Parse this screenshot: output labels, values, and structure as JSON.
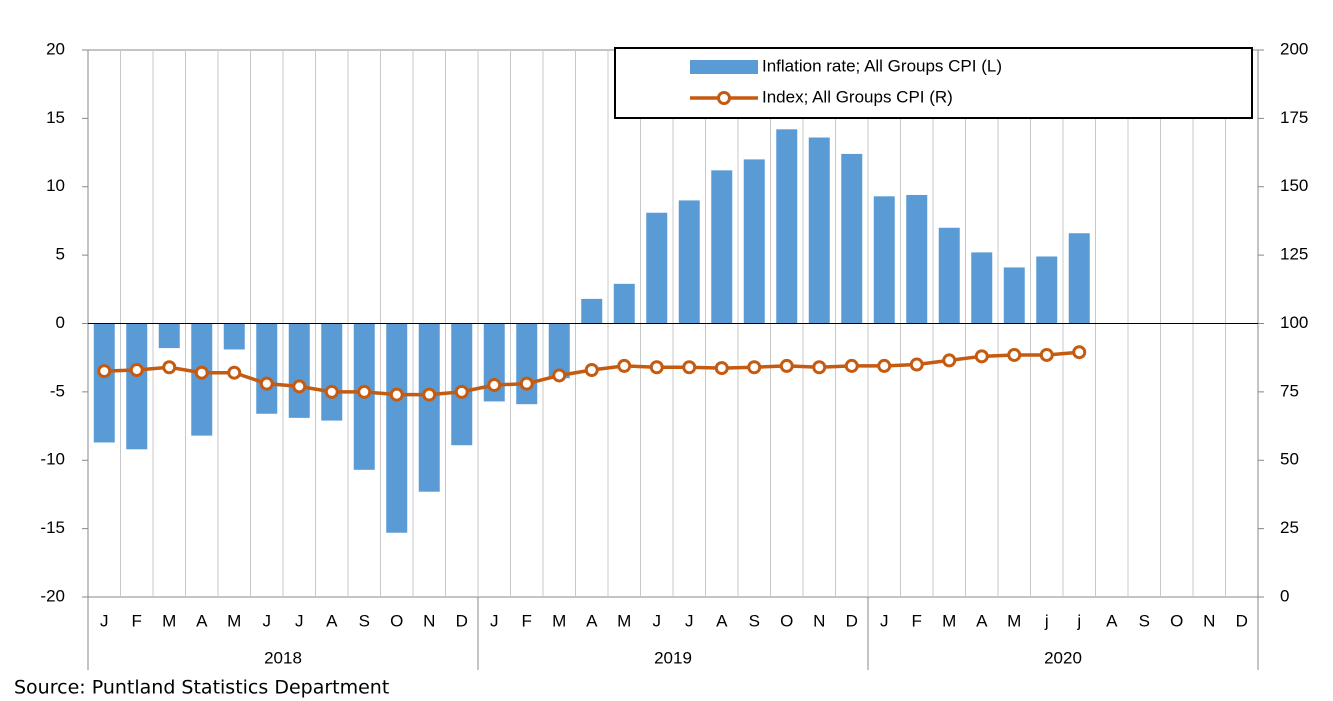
{
  "chart_data": {
    "type": "bar_line",
    "categories": [
      "J",
      "F",
      "M",
      "A",
      "M",
      "J",
      "J",
      "A",
      "S",
      "O",
      "N",
      "D",
      "J",
      "F",
      "M",
      "A",
      "M",
      "J",
      "J",
      "A",
      "S",
      "O",
      "N",
      "D",
      "J",
      "F",
      "M",
      "A",
      "M",
      "j",
      "j",
      "A",
      "S",
      "O",
      "N",
      "D"
    ],
    "year_labels": [
      "2018",
      "2019",
      "2020"
    ],
    "series": [
      {
        "name": "Inflation rate; All Groups CPI (L)",
        "color": "#5b9bd5",
        "axis": "y",
        "values": [
          -8.7,
          -9.2,
          -1.8,
          -8.2,
          -1.9,
          -6.6,
          -6.9,
          -7.1,
          -10.7,
          -15.3,
          -12.3,
          -8.9,
          -5.7,
          -5.9,
          -4.0,
          1.8,
          2.9,
          8.1,
          9.0,
          11.2,
          12.0,
          14.2,
          13.6,
          12.4,
          9.3,
          9.4,
          7.0,
          5.2,
          4.1,
          4.9,
          6.6,
          null,
          null,
          null,
          null,
          null
        ]
      },
      {
        "name": "Index; All Groups CPI (R)",
        "color": "#c55a11",
        "axis": "y2",
        "values": [
          82.6,
          83,
          84,
          82,
          82,
          78,
          77,
          75,
          75,
          74,
          74,
          75,
          77.5,
          78,
          81,
          83,
          84.5,
          84,
          84,
          83.7,
          84,
          84.5,
          84,
          84.5,
          84.5,
          85,
          86.5,
          88,
          88.5,
          88.5,
          89.5,
          null,
          null,
          null,
          null,
          null
        ]
      }
    ],
    "ylim": [
      -20,
      20
    ],
    "yticks": [
      -20,
      -15,
      -10,
      -5,
      0,
      5,
      10,
      15,
      20
    ],
    "y2lim": [
      0,
      200
    ],
    "y2ticks": [
      0,
      25,
      50,
      75,
      100,
      125,
      150,
      175,
      200
    ],
    "legend": "top-right",
    "source": "Source: Puntland Statistics Department"
  }
}
